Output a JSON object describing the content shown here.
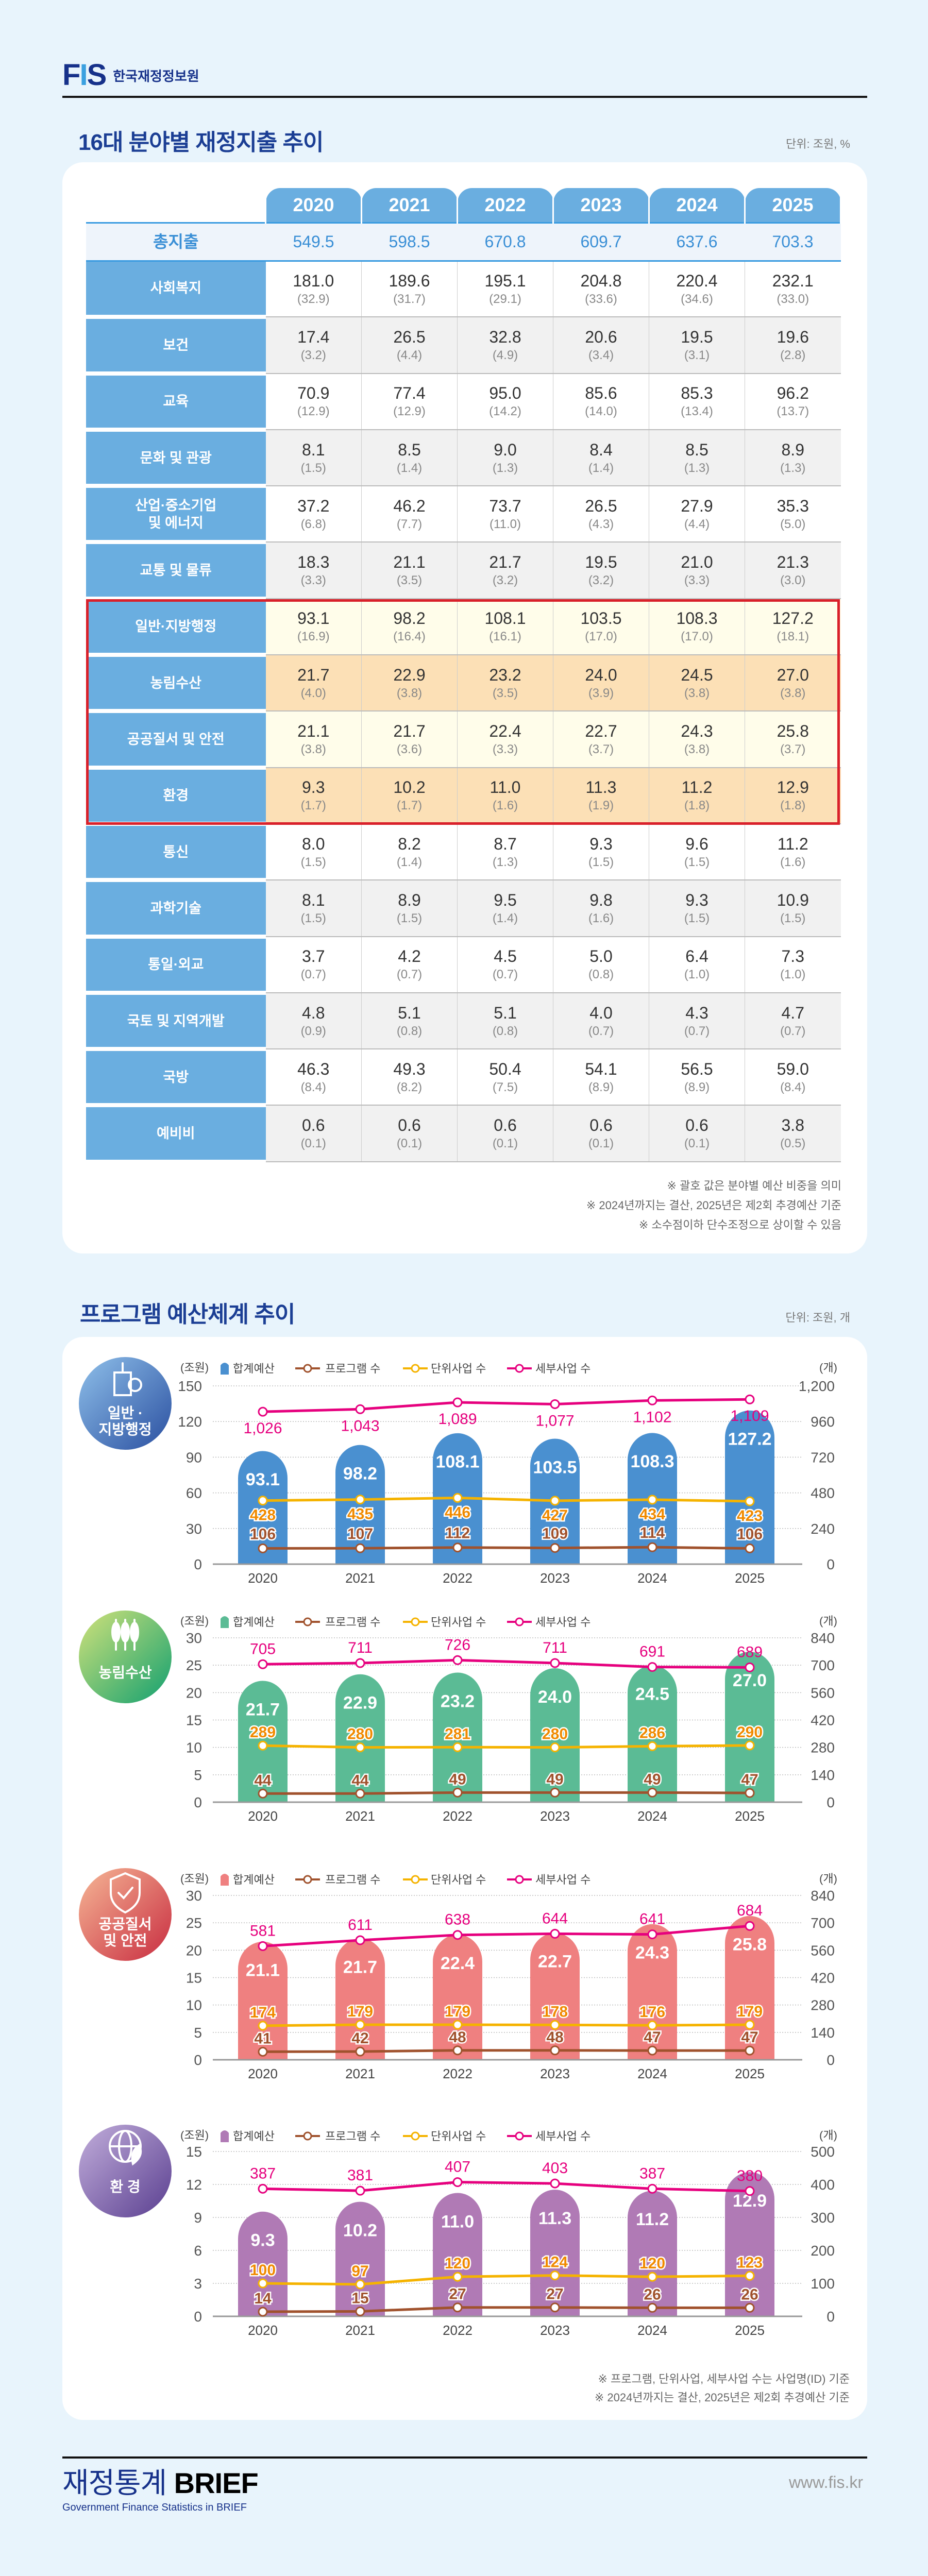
{
  "header": {
    "logo_mark": "FIS",
    "org_name": "한국재정정보원"
  },
  "section1": {
    "title": "16대 분야별 재정지출 추이",
    "unit": "단위: 조원, %",
    "years": [
      "2020",
      "2021",
      "2022",
      "2023",
      "2024",
      "2025"
    ],
    "total": {
      "label": "총지출",
      "values": [
        "549.5",
        "598.5",
        "670.8",
        "609.7",
        "637.6",
        "703.3"
      ]
    },
    "rows": [
      {
        "label": "사회복지",
        "values": [
          "181.0",
          "189.6",
          "195.1",
          "204.8",
          "220.4",
          "232.1"
        ],
        "shares": [
          "32.9",
          "31.7",
          "29.1",
          "33.6",
          "34.6",
          "33.0"
        ],
        "highlight": false
      },
      {
        "label": "보건",
        "values": [
          "17.4",
          "26.5",
          "32.8",
          "20.6",
          "19.5",
          "19.6"
        ],
        "shares": [
          "3.2",
          "4.4",
          "4.9",
          "3.4",
          "3.1",
          "2.8"
        ],
        "highlight": false
      },
      {
        "label": "교육",
        "values": [
          "70.9",
          "77.4",
          "95.0",
          "85.6",
          "85.3",
          "96.2"
        ],
        "shares": [
          "12.9",
          "12.9",
          "14.2",
          "14.0",
          "13.4",
          "13.7"
        ],
        "highlight": false
      },
      {
        "label": "문화 및 관광",
        "values": [
          "8.1",
          "8.5",
          "9.0",
          "8.4",
          "8.5",
          "8.9"
        ],
        "shares": [
          "1.5",
          "1.4",
          "1.3",
          "1.4",
          "1.3",
          "1.3"
        ],
        "highlight": false
      },
      {
        "label": "산업·중소기업\n및 에너지",
        "values": [
          "37.2",
          "46.2",
          "73.7",
          "26.5",
          "27.9",
          "35.3"
        ],
        "shares": [
          "6.8",
          "7.7",
          "11.0",
          "4.3",
          "4.4",
          "5.0"
        ],
        "highlight": false
      },
      {
        "label": "교통 및 물류",
        "values": [
          "18.3",
          "21.1",
          "21.7",
          "19.5",
          "21.0",
          "21.3"
        ],
        "shares": [
          "3.3",
          "3.5",
          "3.2",
          "3.2",
          "3.3",
          "3.0"
        ],
        "highlight": false
      },
      {
        "label": "일반·지방행정",
        "values": [
          "93.1",
          "98.2",
          "108.1",
          "103.5",
          "108.3",
          "127.2"
        ],
        "shares": [
          "16.9",
          "16.4",
          "16.1",
          "17.0",
          "17.0",
          "18.1"
        ],
        "highlight": true
      },
      {
        "label": "농림수산",
        "values": [
          "21.7",
          "22.9",
          "23.2",
          "24.0",
          "24.5",
          "27.0"
        ],
        "shares": [
          "4.0",
          "3.8",
          "3.5",
          "3.9",
          "3.8",
          "3.8"
        ],
        "highlight": true
      },
      {
        "label": "공공질서 및 안전",
        "values": [
          "21.1",
          "21.7",
          "22.4",
          "22.7",
          "24.3",
          "25.8"
        ],
        "shares": [
          "3.8",
          "3.6",
          "3.3",
          "3.7",
          "3.8",
          "3.7"
        ],
        "highlight": true
      },
      {
        "label": "환경",
        "values": [
          "9.3",
          "10.2",
          "11.0",
          "11.3",
          "11.2",
          "12.9"
        ],
        "shares": [
          "1.7",
          "1.7",
          "1.6",
          "1.9",
          "1.8",
          "1.8"
        ],
        "highlight": true
      },
      {
        "label": "통신",
        "values": [
          "8.0",
          "8.2",
          "8.7",
          "9.3",
          "9.6",
          "11.2"
        ],
        "shares": [
          "1.5",
          "1.4",
          "1.3",
          "1.5",
          "1.5",
          "1.6"
        ],
        "highlight": false
      },
      {
        "label": "과학기술",
        "values": [
          "8.1",
          "8.9",
          "9.5",
          "9.8",
          "9.3",
          "10.9"
        ],
        "shares": [
          "1.5",
          "1.5",
          "1.4",
          "1.6",
          "1.5",
          "1.5"
        ],
        "highlight": false
      },
      {
        "label": "통일·외교",
        "values": [
          "3.7",
          "4.2",
          "4.5",
          "5.0",
          "6.4",
          "7.3"
        ],
        "shares": [
          "0.7",
          "0.7",
          "0.7",
          "0.8",
          "1.0",
          "1.0"
        ],
        "highlight": false
      },
      {
        "label": "국토 및 지역개발",
        "values": [
          "4.8",
          "5.1",
          "5.1",
          "4.0",
          "4.3",
          "4.7"
        ],
        "shares": [
          "0.9",
          "0.8",
          "0.8",
          "0.7",
          "0.7",
          "0.7"
        ],
        "highlight": false
      },
      {
        "label": "국방",
        "values": [
          "46.3",
          "49.3",
          "50.4",
          "54.1",
          "56.5",
          "59.0"
        ],
        "shares": [
          "8.4",
          "8.2",
          "7.5",
          "8.9",
          "8.9",
          "8.4"
        ],
        "highlight": false
      },
      {
        "label": "예비비",
        "values": [
          "0.6",
          "0.6",
          "0.6",
          "0.6",
          "0.6",
          "3.8"
        ],
        "shares": [
          "0.1",
          "0.1",
          "0.1",
          "0.1",
          "0.1",
          "0.5"
        ],
        "highlight": false
      }
    ],
    "notes": [
      "※ 괄호 값은 분야별 예산 비중을 의미",
      "※ 2024년까지는 결산, 2025년은 제2회 추경예산 기준",
      "※ 소수점이하 단수조정으로 상이할 수 있음"
    ],
    "colors": {
      "header": "#6aaee0",
      "total_text": "#3a8fd6",
      "highlight_border": "#d9202a",
      "highlight_light": "#fffdea",
      "highlight_peach": "#fce0b6"
    }
  },
  "section2": {
    "title": "프로그램 예산체계 추이",
    "unit": "단위: 조원, 개",
    "notes": [
      "※ 프로그램, 단위사업, 세부사업 수는 사업명(ID) 기준",
      "※ 2024년까지는 결산, 2025년은 제2회 추경예산 기준"
    ]
  },
  "chart_data": [
    {
      "type": "bar+line",
      "badge": [
        "일반 ·",
        "지방행정"
      ],
      "badge_icon": "government-building-icon",
      "categories": [
        "2020",
        "2021",
        "2022",
        "2023",
        "2024",
        "2025"
      ],
      "left_unit": "(조원)",
      "right_unit": "(개)",
      "ylim_left": [
        0,
        150
      ],
      "left_ticks": [
        0,
        30,
        60,
        90,
        120,
        150
      ],
      "ylim_right": [
        0,
        1200
      ],
      "right_ticks": [
        0,
        240,
        480,
        720,
        960,
        1200
      ],
      "grid": true,
      "legend": "top",
      "series": [
        {
          "name": "합계예산",
          "type": "bar",
          "axis": "left",
          "color": "#4a90d0",
          "values": [
            93.1,
            98.2,
            108.1,
            103.5,
            108.3,
            127.2
          ]
        },
        {
          "name": "프로그램 수",
          "type": "line",
          "axis": "right",
          "color": "#a0522d",
          "values": [
            106,
            107,
            112,
            109,
            114,
            106
          ]
        },
        {
          "name": "단위사업 수",
          "type": "line",
          "axis": "right",
          "color": "#f5b300",
          "values": [
            428,
            435,
            446,
            427,
            434,
            423
          ]
        },
        {
          "name": "세부사업 수",
          "type": "line",
          "axis": "right",
          "color": "#e6007e",
          "values": [
            1026,
            1043,
            1089,
            1077,
            1102,
            1109
          ]
        }
      ]
    },
    {
      "type": "bar+line",
      "badge": [
        "농림수산"
      ],
      "badge_icon": "wheat-icon",
      "categories": [
        "2020",
        "2021",
        "2022",
        "2023",
        "2024",
        "2025"
      ],
      "left_unit": "(조원)",
      "right_unit": "(개)",
      "ylim_left": [
        0,
        30
      ],
      "left_ticks": [
        0,
        5,
        10,
        15,
        20,
        25,
        30
      ],
      "ylim_right": [
        0,
        840
      ],
      "right_ticks": [
        0,
        140,
        280,
        420,
        560,
        700,
        840
      ],
      "grid": true,
      "legend": "top",
      "series": [
        {
          "name": "합계예산",
          "type": "bar",
          "axis": "left",
          "color": "#5bbb95",
          "values": [
            21.7,
            22.9,
            23.2,
            24.0,
            24.5,
            27.0
          ]
        },
        {
          "name": "프로그램 수",
          "type": "line",
          "axis": "right",
          "color": "#a0522d",
          "values": [
            44,
            44,
            49,
            49,
            49,
            47
          ]
        },
        {
          "name": "단위사업 수",
          "type": "line",
          "axis": "right",
          "color": "#f5b300",
          "values": [
            289,
            280,
            281,
            280,
            286,
            290
          ]
        },
        {
          "name": "세부사업 수",
          "type": "line",
          "axis": "right",
          "color": "#e6007e",
          "values": [
            705,
            711,
            726,
            711,
            691,
            689
          ]
        }
      ]
    },
    {
      "type": "bar+line",
      "badge": [
        "공공질서",
        "및 안전"
      ],
      "badge_icon": "shield-check-icon",
      "categories": [
        "2020",
        "2021",
        "2022",
        "2023",
        "2024",
        "2025"
      ],
      "left_unit": "(조원)",
      "right_unit": "(개)",
      "ylim_left": [
        0,
        30
      ],
      "left_ticks": [
        0,
        5,
        10,
        15,
        20,
        25,
        30
      ],
      "ylim_right": [
        0,
        840
      ],
      "right_ticks": [
        0,
        140,
        280,
        420,
        560,
        700,
        840
      ],
      "grid": true,
      "legend": "top",
      "series": [
        {
          "name": "합계예산",
          "type": "bar",
          "axis": "left",
          "color": "#ef8080",
          "values": [
            21.1,
            21.7,
            22.4,
            22.7,
            24.3,
            25.8
          ]
        },
        {
          "name": "프로그램 수",
          "type": "line",
          "axis": "right",
          "color": "#a0522d",
          "values": [
            41,
            42,
            48,
            48,
            47,
            47
          ]
        },
        {
          "name": "단위사업 수",
          "type": "line",
          "axis": "right",
          "color": "#f5b300",
          "values": [
            174,
            179,
            179,
            178,
            176,
            179
          ]
        },
        {
          "name": "세부사업 수",
          "type": "line",
          "axis": "right",
          "color": "#e6007e",
          "values": [
            581,
            611,
            638,
            644,
            641,
            684
          ]
        }
      ]
    },
    {
      "type": "bar+line",
      "badge": [
        "환 경"
      ],
      "badge_icon": "globe-leaf-icon",
      "categories": [
        "2020",
        "2021",
        "2022",
        "2023",
        "2024",
        "2025"
      ],
      "left_unit": "(조원)",
      "right_unit": "(개)",
      "ylim_left": [
        0,
        15
      ],
      "left_ticks": [
        0,
        3,
        6,
        9,
        12,
        15
      ],
      "ylim_right": [
        0,
        500
      ],
      "right_ticks": [
        0,
        100,
        200,
        300,
        400,
        500
      ],
      "grid": true,
      "legend": "top",
      "series": [
        {
          "name": "합계예산",
          "type": "bar",
          "axis": "left",
          "color": "#b07ab5",
          "values": [
            9.3,
            10.2,
            11.0,
            11.3,
            11.2,
            12.9
          ]
        },
        {
          "name": "프로그램 수",
          "type": "line",
          "axis": "right",
          "color": "#a0522d",
          "values": [
            14,
            15,
            27,
            27,
            26,
            26
          ]
        },
        {
          "name": "단위사업 수",
          "type": "line",
          "axis": "right",
          "color": "#f5b300",
          "values": [
            100,
            97,
            120,
            124,
            120,
            123
          ]
        },
        {
          "name": "세부사업 수",
          "type": "line",
          "axis": "right",
          "color": "#e6007e",
          "values": [
            387,
            381,
            407,
            403,
            387,
            380
          ]
        }
      ]
    }
  ],
  "footer": {
    "brand_korean": "재정통계",
    "brand_english": "BRIEF",
    "subtitle": "Government Finance Statistics in BRIEF",
    "url": "www.fis.kr"
  }
}
